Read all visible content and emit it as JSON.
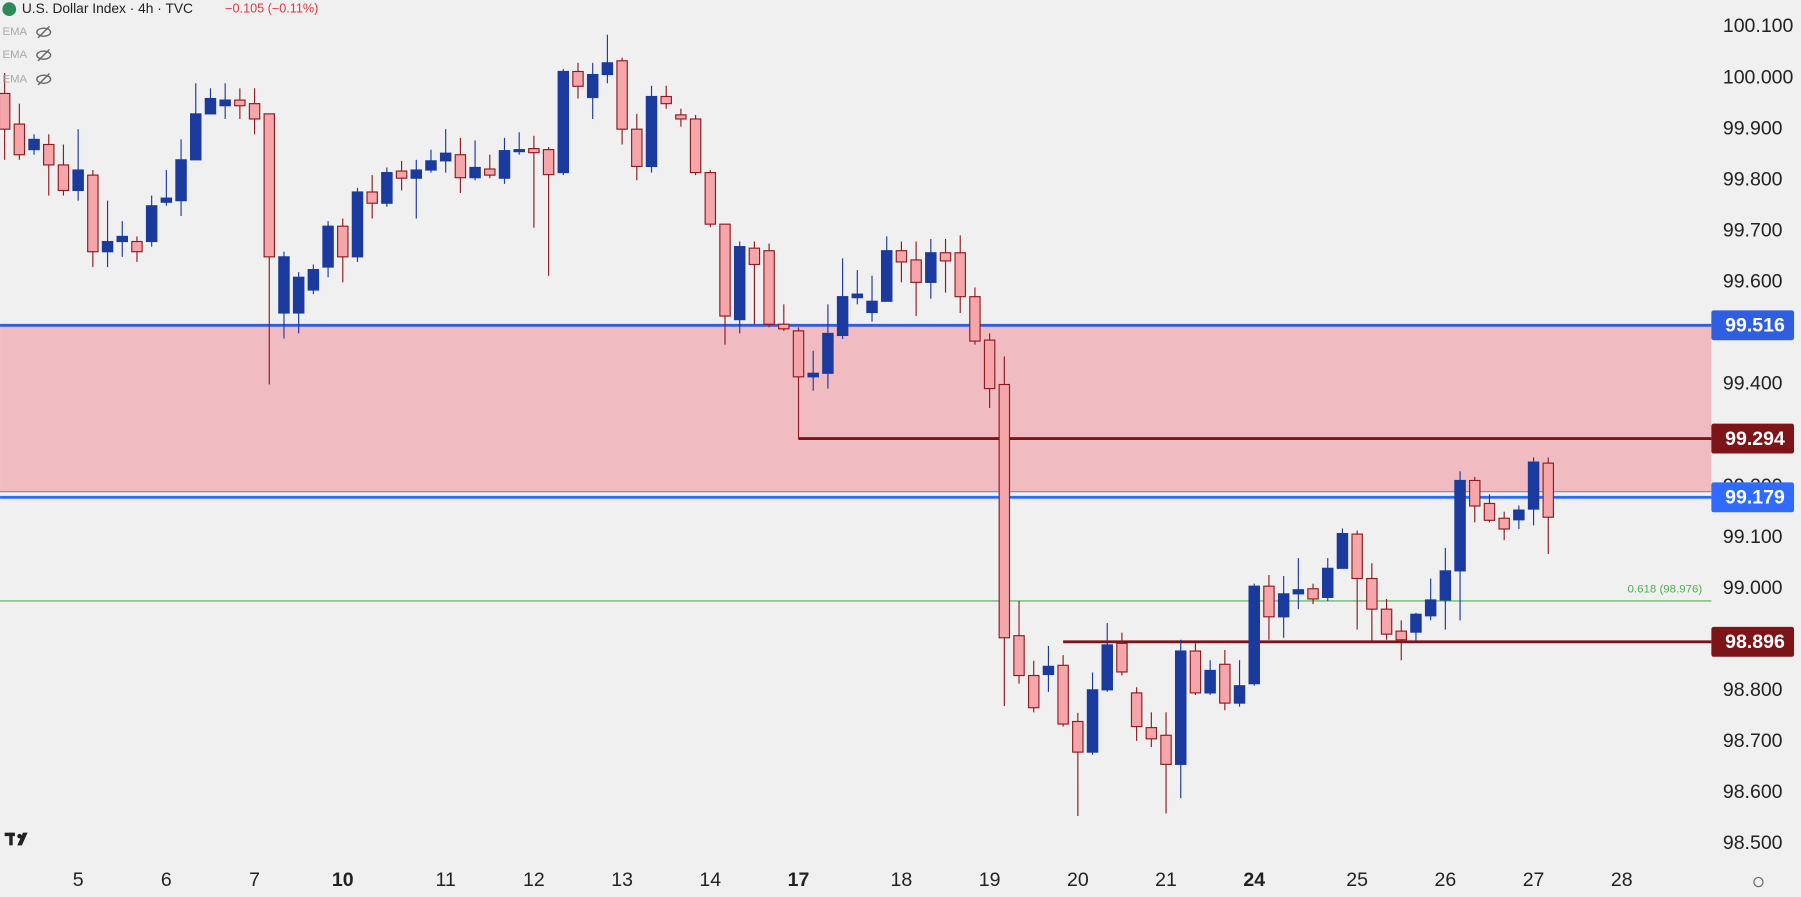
{
  "header": {
    "title": "U.S. Dollar Index · 4h · TVC",
    "change": "−0.105 (−0.11%)",
    "indicators": [
      "EMA",
      "EMA",
      "EMA"
    ]
  },
  "chart_data": {
    "type": "candlestick",
    "bull_color": "#1a3a9e",
    "bear_color": "#f4a6aa",
    "bear_border": "#8e1b1f",
    "open": [
      99.97,
      99.91,
      99.86,
      99.87,
      99.83,
      99.78,
      99.81,
      99.66,
      99.68,
      99.68,
      99.68,
      99.757,
      99.76,
      99.84,
      99.93,
      99.946,
      99.957,
      99.95,
      99.93,
      99.54,
      99.54,
      99.585,
      99.63,
      99.71,
      99.65,
      99.777,
      99.755,
      99.818,
      99.804,
      99.82,
      99.838,
      99.85,
      99.805,
      99.822,
      99.804,
      99.856,
      99.862,
      99.86,
      99.815,
      100.013,
      99.962,
      100.007,
      100.034,
      99.9,
      99.827,
      99.964,
      99.928,
      99.92,
      99.815,
      99.714,
      99.527,
      99.667,
      99.662,
      99.518,
      99.505,
      99.415,
      99.422,
      99.496,
      99.57,
      99.541,
      99.563,
      99.662,
      99.644,
      99.6,
      99.658,
      99.658,
      99.572,
      99.487,
      99.4,
      98.908,
      98.83,
      98.832,
      98.85,
      98.74,
      98.68,
      98.802,
      98.893,
      98.796,
      98.728,
      98.713,
      98.656,
      98.878,
      98.796,
      98.852,
      98.776,
      98.814,
      99.005,
      98.945,
      98.99,
      99.0,
      98.983,
      99.04,
      99.107,
      99.02,
      98.96,
      98.917,
      98.915,
      98.947,
      98.978,
      99.035,
      99.212,
      99.167,
      99.138,
      99.135,
      99.156,
      99.246
    ],
    "high": [
      100.01,
      99.95,
      99.89,
      99.89,
      99.87,
      99.9,
      99.82,
      99.76,
      99.72,
      99.69,
      99.77,
      99.82,
      99.88,
      99.99,
      99.98,
      99.99,
      99.98,
      99.98,
      99.93,
      99.66,
      99.62,
      99.635,
      99.72,
      99.725,
      99.785,
      99.81,
      99.825,
      99.838,
      99.84,
      99.86,
      99.9,
      99.883,
      99.878,
      99.85,
      99.883,
      99.894,
      99.887,
      99.865,
      100.018,
      100.03,
      100.03,
      100.085,
      100.04,
      99.93,
      99.985,
      99.985,
      99.94,
      99.928,
      99.82,
      99.714,
      99.68,
      99.68,
      99.676,
      99.557,
      99.512,
      99.466,
      99.557,
      99.647,
      99.624,
      99.613,
      99.69,
      99.68,
      99.68,
      99.685,
      99.685,
      99.692,
      99.59,
      99.5,
      99.455,
      98.976,
      98.859,
      98.888,
      98.87,
      98.757,
      98.836,
      98.933,
      98.914,
      98.807,
      98.758,
      98.758,
      98.9,
      98.893,
      98.86,
      98.88,
      98.86,
      99.01,
      99.027,
      99.025,
      99.06,
      99.01,
      99.06,
      99.118,
      99.114,
      99.05,
      98.98,
      98.938,
      98.953,
      99.02,
      99.08,
      99.23,
      99.219,
      99.185,
      99.151,
      99.163,
      99.257,
      99.257
    ],
    "low": [
      99.84,
      99.84,
      99.85,
      99.77,
      99.77,
      99.76,
      99.63,
      99.63,
      99.65,
      99.64,
      99.67,
      99.75,
      99.73,
      99.84,
      99.93,
      99.92,
      99.92,
      99.89,
      99.4,
      99.49,
      99.5,
      99.577,
      99.61,
      99.6,
      99.64,
      99.725,
      99.748,
      99.78,
      99.725,
      99.815,
      99.815,
      99.775,
      99.8,
      99.804,
      99.793,
      99.85,
      99.707,
      99.613,
      99.81,
      99.96,
      99.92,
      99.99,
      99.87,
      99.8,
      99.815,
      99.94,
      99.905,
      99.81,
      99.708,
      99.478,
      99.5,
      99.518,
      99.512,
      99.505,
      99.293,
      99.388,
      99.392,
      99.489,
      99.557,
      99.523,
      99.563,
      99.6,
      99.534,
      99.568,
      99.58,
      99.54,
      99.478,
      99.354,
      98.77,
      98.814,
      98.758,
      98.798,
      98.73,
      98.555,
      98.675,
      98.798,
      98.83,
      98.702,
      98.69,
      98.56,
      98.59,
      98.792,
      98.792,
      98.762,
      98.769,
      98.81,
      98.9,
      98.904,
      98.96,
      98.97,
      98.976,
      99.04,
      98.92,
      98.897,
      98.9,
      98.86,
      98.897,
      98.938,
      98.92,
      98.938,
      99.13,
      99.13,
      99.095,
      99.117,
      99.124,
      99.068
    ],
    "close": [
      99.9,
      99.85,
      99.88,
      99.83,
      99.78,
      99.82,
      99.66,
      99.68,
      99.69,
      99.66,
      99.75,
      99.765,
      99.84,
      99.93,
      99.96,
      99.957,
      99.946,
      99.92,
      99.65,
      99.65,
      99.61,
      99.625,
      99.71,
      99.65,
      99.777,
      99.755,
      99.815,
      99.804,
      99.82,
      99.838,
      99.853,
      99.805,
      99.825,
      99.81,
      99.858,
      99.86,
      99.854,
      99.811,
      100.013,
      99.984,
      100.007,
      100.03,
      99.9,
      99.827,
      99.964,
      99.95,
      99.92,
      99.815,
      99.714,
      99.534,
      99.67,
      99.635,
      99.518,
      99.509,
      99.415,
      99.422,
      99.5,
      99.572,
      99.577,
      99.563,
      99.662,
      99.64,
      99.6,
      99.658,
      99.642,
      99.572,
      99.485,
      99.392,
      98.904,
      98.83,
      98.767,
      98.848,
      98.735,
      98.68,
      98.802,
      98.89,
      98.837,
      98.73,
      98.706,
      98.656,
      98.878,
      98.796,
      98.84,
      98.776,
      98.81,
      99.005,
      98.945,
      98.99,
      98.998,
      98.98,
      99.04,
      99.108,
      99.02,
      98.96,
      98.911,
      98.9,
      98.95,
      98.978,
      99.035,
      99.212,
      99.162,
      99.134,
      99.117,
      99.154,
      99.248,
      99.14
    ],
    "xticks": [
      {
        "value": 5,
        "label": "5"
      },
      {
        "value": 11,
        "label": "6"
      },
      {
        "value": 17,
        "label": "7"
      },
      {
        "value": 23,
        "label": "10",
        "bold": true
      },
      {
        "value": 30,
        "label": "11"
      },
      {
        "value": 36,
        "label": "12"
      },
      {
        "value": 42,
        "label": "13"
      },
      {
        "value": 48,
        "label": "14"
      },
      {
        "value": 54,
        "label": "17",
        "bold": true
      },
      {
        "value": 61,
        "label": "18"
      },
      {
        "value": 67,
        "label": "19"
      },
      {
        "value": 73,
        "label": "20"
      },
      {
        "value": 79,
        "label": "21"
      },
      {
        "value": 85,
        "label": "24",
        "bold": true
      },
      {
        "value": 92,
        "label": "25"
      },
      {
        "value": 98,
        "label": "26"
      },
      {
        "value": 104,
        "label": "27"
      },
      {
        "value": 110,
        "label": "28"
      }
    ],
    "ylim": [
      98.466,
      100.153
    ],
    "yticks": [
      {
        "value": 100.1,
        "label": "100.100"
      },
      {
        "value": 100.0,
        "label": "100.000"
      },
      {
        "value": 99.9,
        "label": "99.900"
      },
      {
        "value": 99.8,
        "label": "99.800"
      },
      {
        "value": 99.7,
        "label": "99.700"
      },
      {
        "value": 99.6,
        "label": "99.600"
      },
      {
        "value": 99.4,
        "label": "99.400"
      },
      {
        "value": 99.2,
        "label": "99.200"
      },
      {
        "value": 99.1,
        "label": "99.100"
      },
      {
        "value": 99.0,
        "label": "99.000"
      },
      {
        "value": 98.8,
        "label": "98.800"
      },
      {
        "value": 98.7,
        "label": "98.700"
      },
      {
        "value": 98.6,
        "label": "98.600"
      },
      {
        "value": 98.5,
        "label": "98.500"
      }
    ],
    "zone": {
      "from": 99.516,
      "to": 99.19,
      "color": "#f0bcc2"
    },
    "levels": [
      {
        "value": 99.516,
        "color": "#2f5fe0",
        "start": 0
      },
      {
        "value": 99.294,
        "color": "#7d1418",
        "start": 54
      },
      {
        "value": 99.179,
        "color": "#2f6bff",
        "start": 0
      },
      {
        "value": 98.896,
        "color": "#7d1418",
        "start": 72
      }
    ],
    "fib": {
      "value": 98.976,
      "label": "0.618 (98.976)",
      "color": "#4caf50"
    }
  }
}
